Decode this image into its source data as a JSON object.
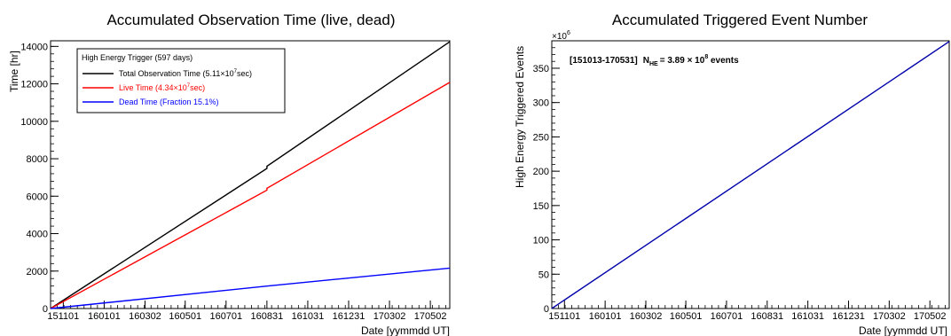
{
  "chart_data": [
    {
      "type": "line",
      "title": "Accumulated Observation Time (live, dead)",
      "xlabel": "Date [yymmdd UT]",
      "ylabel": "Time [hr]",
      "xlim": [
        "151013",
        "170531"
      ],
      "ylim": [
        0,
        14300
      ],
      "x_ticks": [
        "151101",
        "160101",
        "160302",
        "160501",
        "160701",
        "160831",
        "161031",
        "161231",
        "170302",
        "170502"
      ],
      "y_ticks": [
        0,
        2000,
        4000,
        6000,
        8000,
        10000,
        12000,
        14000
      ],
      "grid": false,
      "legend": {
        "placement": "top-left",
        "header": "High Energy Trigger (597 days)",
        "entries": [
          {
            "pre": "Total Observation Time (5.11×10",
            "sup": "7",
            "post": "sec)",
            "color": "#000000"
          },
          {
            "pre": "Live Time  (4.34×10",
            "sup": "7",
            "post": "sec)",
            "color": "#ff0000"
          },
          {
            "pre": "Dead Time  (Fraction 15.1%)",
            "sup": "",
            "post": "",
            "color": "#0000ff"
          }
        ]
      },
      "series": [
        {
          "color": "#000000",
          "x": [
            "151013",
            "160831",
            "160831",
            "170531"
          ],
          "y": [
            0,
            7480,
            7600,
            14250
          ]
        },
        {
          "color": "#ff0000",
          "x": [
            "151013",
            "160831",
            "160831",
            "170531"
          ],
          "y": [
            0,
            6320,
            6420,
            12080
          ]
        },
        {
          "color": "#0000ff",
          "x": [
            "151013",
            "160831",
            "170531"
          ],
          "y": [
            0,
            1200,
            2160
          ]
        }
      ]
    },
    {
      "type": "line",
      "title": "Accumulated Triggered Event Number",
      "xlabel": "Date [yymmdd UT]",
      "ylabel": "High Energy Triggered Events",
      "y_multiplier": "×10",
      "y_multiplier_exp": "6",
      "xlim": [
        "151013",
        "170531"
      ],
      "ylim": [
        0,
        390
      ],
      "x_ticks": [
        "151101",
        "160101",
        "160302",
        "160501",
        "160701",
        "160831",
        "161031",
        "161231",
        "170302",
        "170502"
      ],
      "y_ticks": [
        0,
        50,
        100,
        150,
        200,
        250,
        300,
        350
      ],
      "grid": false,
      "annotation": {
        "range": "[151013-170531]",
        "sym": "N",
        "sub": "HE",
        "value": "= 3.89 × 10",
        "exp": "8",
        "unit": " events"
      },
      "series": [
        {
          "color": "#0000aa",
          "x": [
            "151013",
            "170531"
          ],
          "y": [
            0,
            389
          ]
        }
      ]
    }
  ]
}
